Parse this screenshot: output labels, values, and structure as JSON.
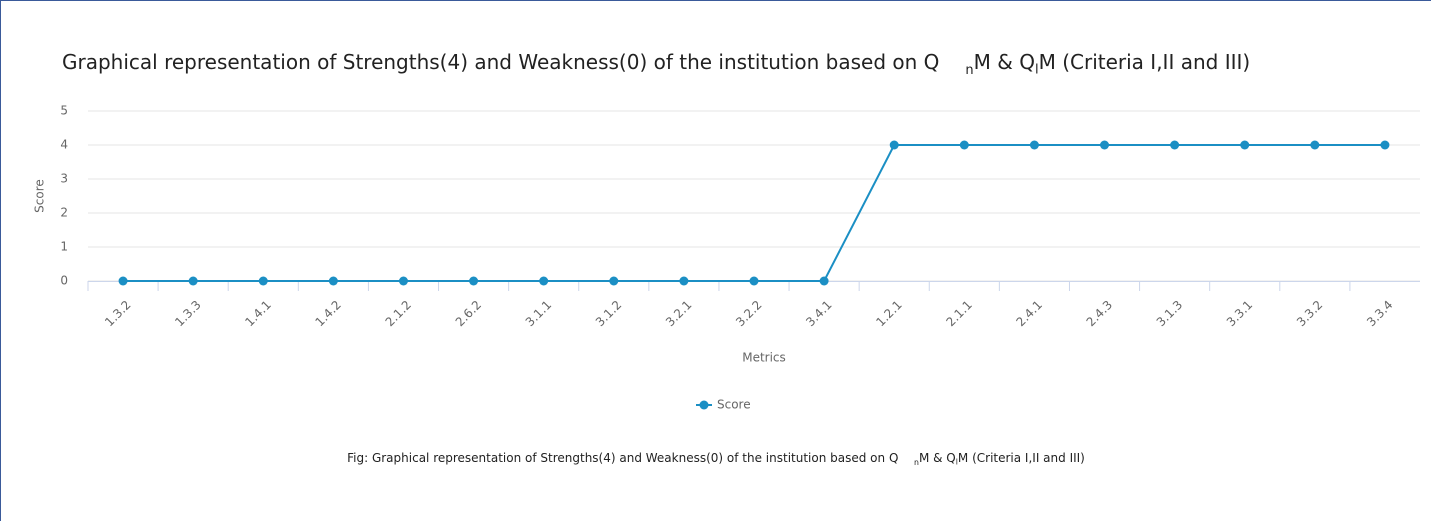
{
  "chart_data": {
    "type": "line",
    "title": [
      "Graphical representation of Strengths(4) and Weakness(0) of the institution based on Q",
      "n",
      "M & Q",
      "l",
      "M (Criteria I,II and III)"
    ],
    "caption": [
      "Fig: Graphical representation of Strengths(4) and Weakness(0) of the institution based on Q",
      "n",
      "M & Q",
      "l",
      "M (Criteria I,II and III)"
    ],
    "xlabel": "Metrics",
    "ylabel": "Score",
    "categories": [
      "1.3.2",
      "1.3.3",
      "1.4.1",
      "1.4.2",
      "2.1.2",
      "2.6.2",
      "3.1.1",
      "3.1.2",
      "3.2.1",
      "3.2.2",
      "3.4.1",
      "1.2.1",
      "2.1.1",
      "2.4.1",
      "2.4.3",
      "3.1.3",
      "3.3.1",
      "3.3.2",
      "3.3.4"
    ],
    "series": [
      {
        "name": "Score",
        "color": "#1b8fc4",
        "values": [
          0,
          0,
          0,
          0,
          0,
          0,
          0,
          0,
          0,
          0,
          0,
          4,
          4,
          4,
          4,
          4,
          4,
          4,
          4
        ]
      }
    ],
    "ylim": [
      0,
      5
    ],
    "yticks": [
      0,
      1,
      2,
      3,
      4,
      5
    ],
    "grid": true
  }
}
